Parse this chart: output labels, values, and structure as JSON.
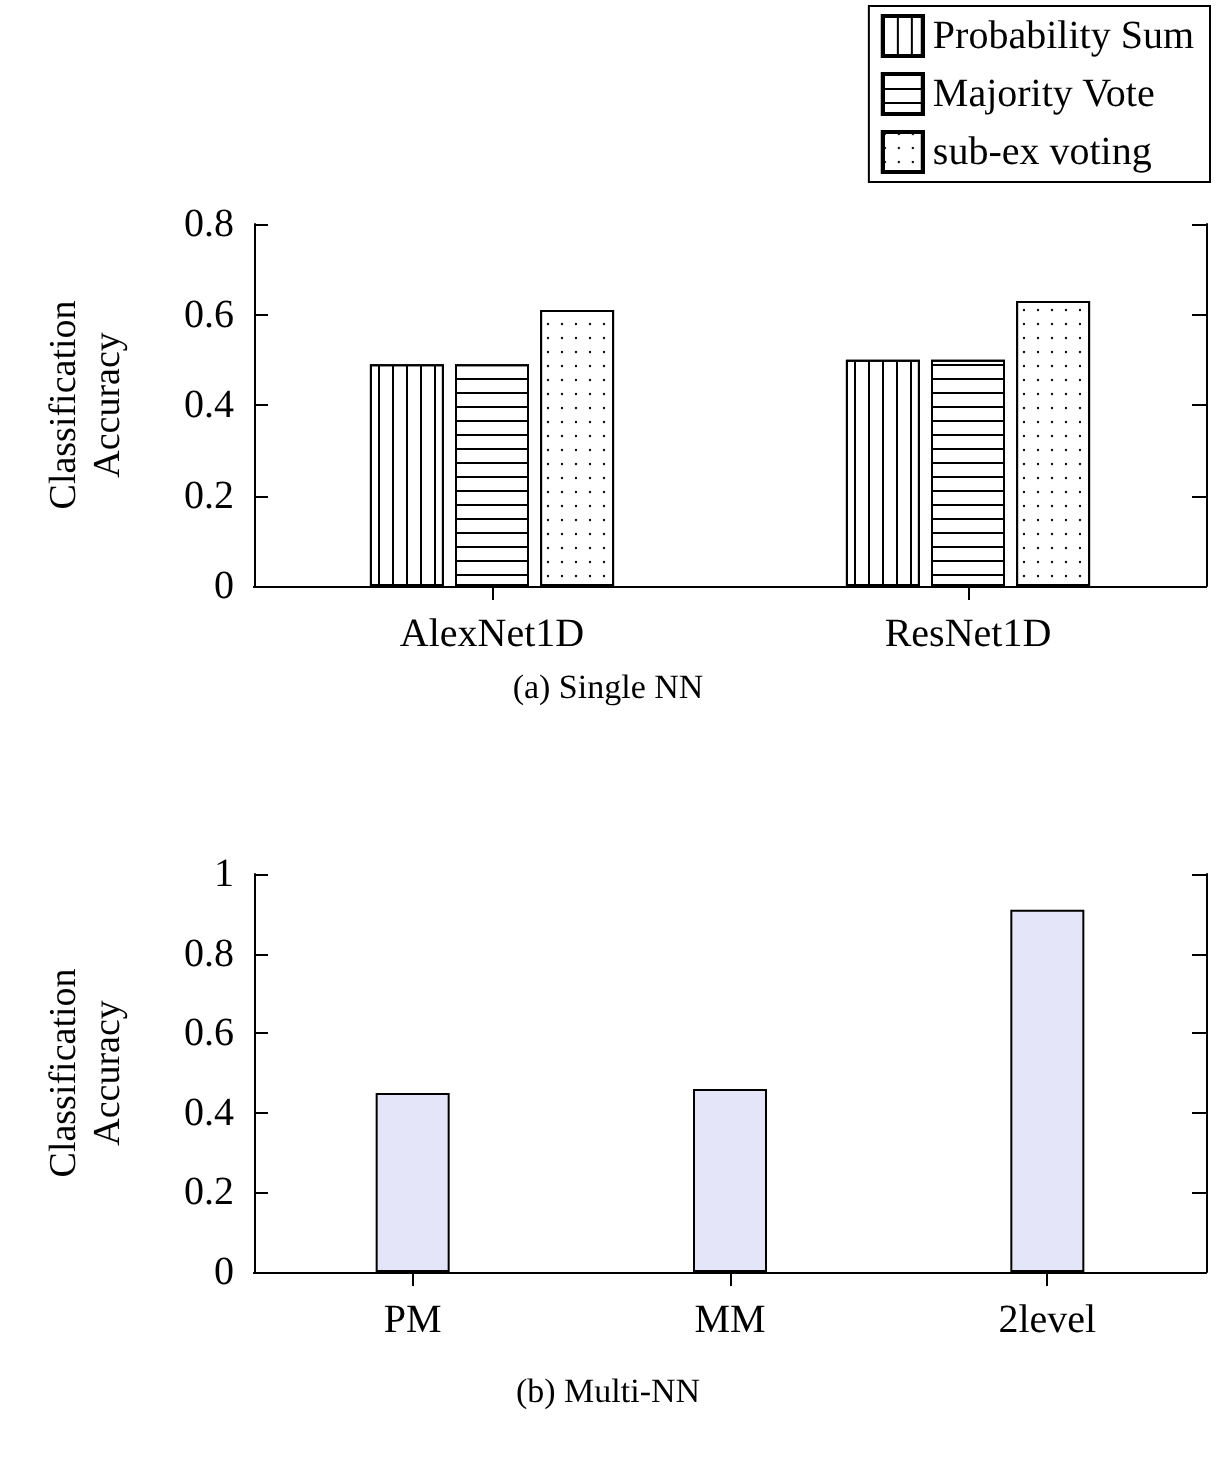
{
  "chart_data": [
    {
      "type": "bar",
      "title": "(a) Single NN",
      "ylabel": "Classification Accuracy",
      "categories": [
        "AlexNet1D",
        "ResNet1D"
      ],
      "series": [
        {
          "name": "Probability Sum",
          "color": "#ffffff",
          "values": [
            0.49,
            0.5
          ]
        },
        {
          "name": "Majority Vote",
          "color": "#ffffff",
          "values": [
            0.49,
            0.5
          ]
        },
        {
          "name": "sub-ex voting",
          "color": "#ffffff",
          "values": [
            0.61,
            0.63
          ]
        }
      ],
      "ylim": [
        0,
        0.8
      ],
      "yticks": [
        0,
        0.2,
        0.4,
        0.6,
        0.8
      ],
      "grid": false,
      "legend": "top right"
    },
    {
      "type": "bar",
      "title": "(b) Multi-NN",
      "ylabel": "Classification Accuracy",
      "categories": [
        "PM",
        "MM",
        "2level"
      ],
      "values": [
        0.45,
        0.46,
        0.91
      ],
      "color": "#e5e5fa",
      "ylim": [
        0,
        1
      ],
      "yticks": [
        0,
        0.2,
        0.4,
        0.6,
        0.8,
        1
      ],
      "grid": false,
      "legend": false
    }
  ]
}
